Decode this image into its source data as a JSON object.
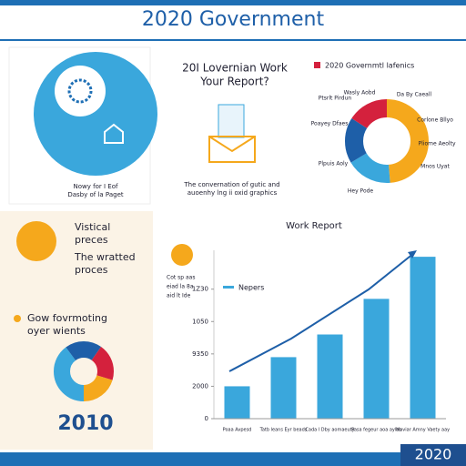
{
  "header": {
    "title": "2020 Government"
  },
  "left_card": {
    "caption_1": "Nowy for I Eof",
    "caption_2": "Dasby of la Paget"
  },
  "middle_card": {
    "title_1": "20I Lovernian Work",
    "title_2": "Your Report?",
    "caption_1": "The convernation of gutic and",
    "caption_2": "auoenhy lng ii oxid graphics"
  },
  "right_card": {
    "title": "2020 Governmtl lafenics",
    "labels": [
      "Wasly Aobd",
      "Da By Caeall",
      "Ptsrlt Pirdun",
      "Corlone Bllyo",
      "Poayey Dfaes",
      "Pliome Aeolty",
      "Mnos Uyat",
      "Plpuis Aoly",
      "Hey Pode"
    ]
  },
  "bottom_left": {
    "item_1": [
      "Vistical",
      "preces"
    ],
    "item_2": [
      "The wratted",
      "proces"
    ],
    "heading": [
      "Gow fovrmoting",
      "oyer wients"
    ],
    "year": "2010"
  },
  "bar_chart": {
    "type": "bar",
    "title": "Work Report",
    "legend": "Nepers",
    "note": [
      "Cot sp aas",
      "eiad la 8a",
      "aid lt Ide"
    ],
    "categories": [
      "Poaa Avpesd",
      "Tatb leans Eyr beads",
      "Cada l Dby aomaeuty",
      "Pasa fegeur aoa aylas",
      "Maviar Amny Vaety aay"
    ],
    "values": [
      1.0,
      1.9,
      2.6,
      3.7,
      5.0
    ],
    "color": "#3aa7dc",
    "ylim": [
      0,
      5.2
    ],
    "yticks": [
      {
        "value": 0,
        "label": "0"
      },
      {
        "value": 1,
        "label": "2000"
      },
      {
        "value": 2,
        "label": "9350"
      },
      {
        "value": 3,
        "label": "1050"
      },
      {
        "value": 4,
        "label": "1Z30"
      }
    ]
  },
  "footer": {
    "year": "2020"
  }
}
